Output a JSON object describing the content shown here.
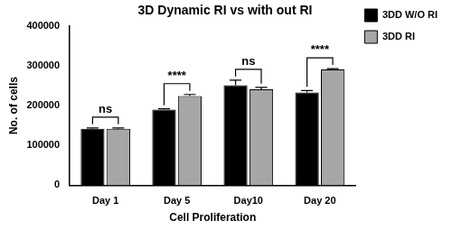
{
  "chart_data": {
    "type": "bar",
    "title": "3D Dynamic RI vs with out RI",
    "x_label": "Cell Proliferation",
    "y_label": "No. of cells",
    "categories": [
      "Day 1",
      "Day 5",
      "Day10",
      "Day 20"
    ],
    "series": [
      {
        "name": "3DD W/O RI",
        "color": "#000000",
        "values": [
          142000,
          190000,
          251000,
          233000
        ],
        "errors": [
          2000,
          2000,
          13000,
          5000
        ]
      },
      {
        "name": "3DD RI",
        "color": "#a6a6a6",
        "values": [
          142000,
          224000,
          241000,
          291000
        ],
        "errors": [
          2000,
          4000,
          5000,
          2000
        ]
      }
    ],
    "annotations": [
      {
        "category": "Day 1",
        "text": "ns"
      },
      {
        "category": "Day 5",
        "text": "****"
      },
      {
        "category": "Day10",
        "text": "ns"
      },
      {
        "category": "Day 20",
        "text": "****"
      }
    ],
    "ylim": [
      0,
      400000
    ],
    "yticks": [
      0,
      100000,
      200000,
      300000,
      400000
    ],
    "grid": false,
    "legend": "right"
  }
}
